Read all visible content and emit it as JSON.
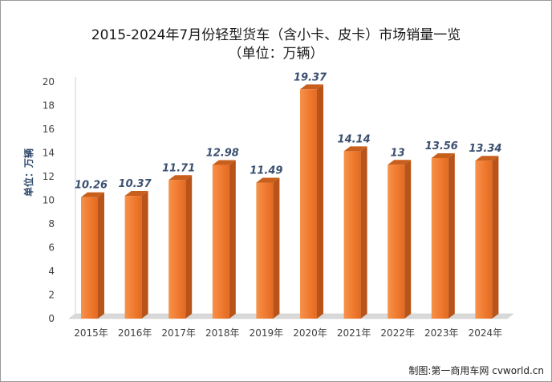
{
  "chart_data": {
    "type": "bar",
    "title": "2015-2024年7月份轻型货车（含小卡、皮卡）市场销量一览",
    "subtitle": "（单位：万辆）",
    "ylabel": "单位：万辆",
    "xlabel": "",
    "categories": [
      "2015年",
      "2016年",
      "2017年",
      "2018年",
      "2019年",
      "2020年",
      "2021年",
      "2022年",
      "2023年",
      "2024年"
    ],
    "values": [
      10.26,
      10.37,
      11.71,
      12.98,
      11.49,
      19.37,
      14.14,
      13,
      13.56,
      13.34
    ],
    "data_labels": [
      "10.26",
      "10.37",
      "11.71",
      "12.98",
      "11.49",
      "19.37",
      "14.14",
      "13",
      "13.56",
      "13.34"
    ],
    "ylim": [
      0,
      20
    ],
    "yticks": [
      "0",
      "2",
      "4",
      "6",
      "8",
      "10",
      "12",
      "14",
      "16",
      "18",
      "20"
    ],
    "grid": false,
    "bar_3d": true,
    "colors": {
      "bar_front": "#f07a30",
      "bar_top": "#c95f1c",
      "bar_side": "#b8541a",
      "floor": "#d9d9d9",
      "label": "#3b5070"
    }
  },
  "credit": "制图:第一商用车网 cvworld.cn"
}
